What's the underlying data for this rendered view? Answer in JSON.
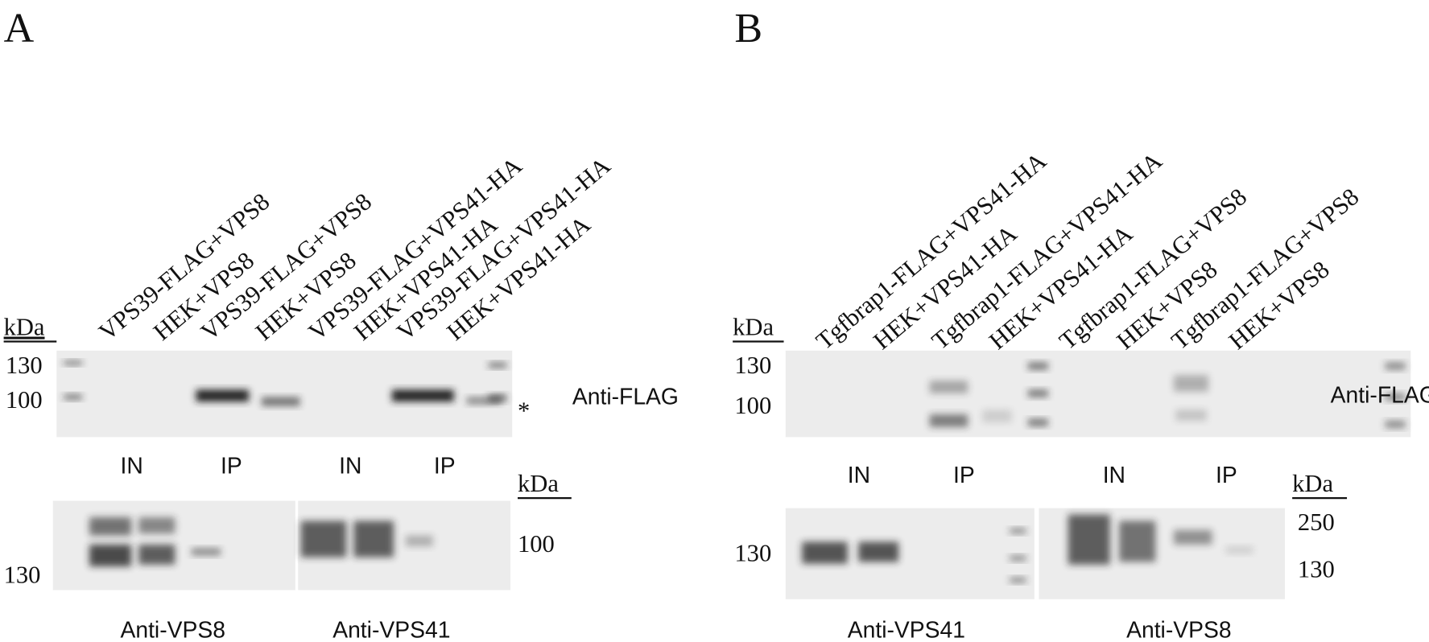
{
  "panels": [
    {
      "label": "A",
      "kda": "kDa",
      "lanes": [
        "VPS39-FLAG+VPS8",
        "HEK+VPS8",
        "VPS39-FLAG+VPS8",
        "HEK+VPS8",
        "VPS39-FLAG+VPS41-HA",
        "HEK+VPS41-HA",
        "VPS39-FLAG+VPS41-HA",
        "HEK+VPS41-HA"
      ],
      "top_blot": {
        "markers": [
          "130",
          "100"
        ],
        "antibody": "Anti-FLAG",
        "note": "*"
      },
      "groups": [
        "IN",
        "IP",
        "IN",
        "IP"
      ],
      "bottom_blot": {
        "kda": "kDa",
        "markers_left": [
          "130"
        ],
        "markers_right": [
          "100"
        ],
        "antibodies": [
          "Anti-VPS8",
          "Anti-VPS41"
        ]
      }
    },
    {
      "label": "B",
      "kda": "kDa",
      "lanes": [
        "Tgfbrap1-FLAG+VPS41-HA",
        "HEK+VPS41-HA",
        "Tgfbrap1-FLAG+VPS41-HA",
        "HEK+VPS41-HA",
        "Tgfbrap1-FLAG+VPS8",
        "HEK+VPS8",
        "Tgfbrap1-FLAG+VPS8",
        "HEK+VPS8"
      ],
      "top_blot": {
        "markers": [
          "130",
          "100"
        ],
        "antibody": "Anti-FLAG"
      },
      "groups": [
        "IN",
        "IP",
        "IN",
        "IP"
      ],
      "bottom_blot": {
        "kda": "kDa",
        "markers_left": [
          "130"
        ],
        "markers_right": [
          "250",
          "130"
        ],
        "antibodies": [
          "Anti-VPS41",
          "Anti-VPS8"
        ]
      }
    }
  ]
}
